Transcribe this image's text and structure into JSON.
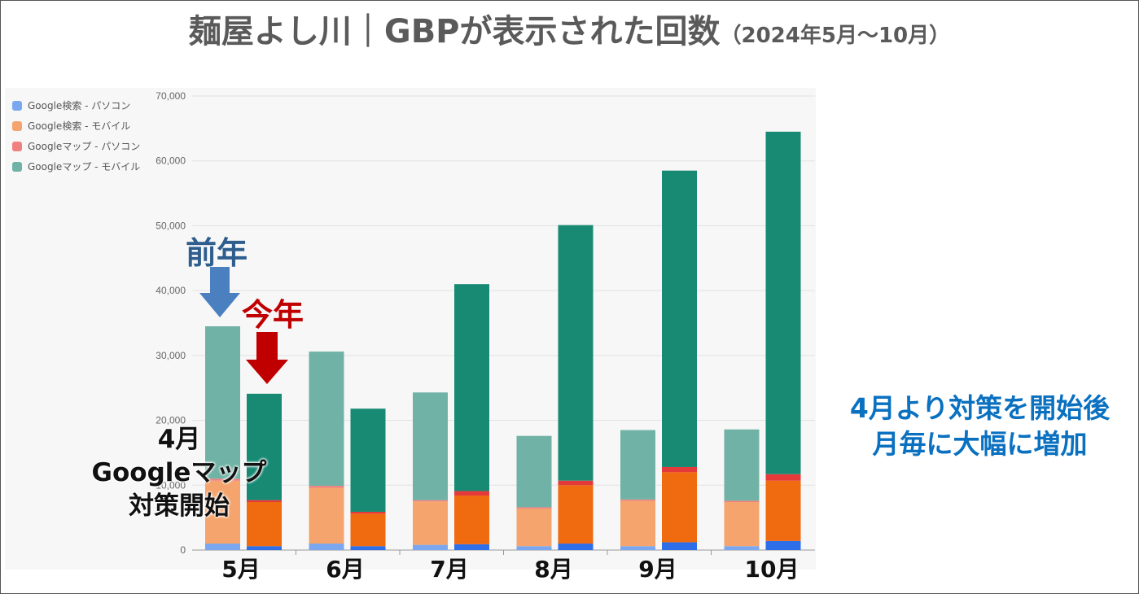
{
  "title": {
    "main": "麺屋よし川｜GBPが表示された回数",
    "sub": "（2024年5月～10月）"
  },
  "annotations": {
    "previous_year": "前年",
    "this_year": "今年",
    "start_note": [
      "4月",
      "Googleマップ",
      "対策開始"
    ],
    "right_note": [
      "4月より対策を開始後",
      "月毎に大幅に増加"
    ]
  },
  "months": [
    "5月",
    "6月",
    "7月",
    "8月",
    "9月",
    "10月"
  ],
  "colors": {
    "prev": [
      "#7ba7f0",
      "#f4a46c",
      "#f08080",
      "#70b3a6"
    ],
    "cur": [
      "#2e6ee8",
      "#f06a10",
      "#e53a3a",
      "#188a74"
    ],
    "arrow_prev": "#4a7fc0",
    "arrow_cur": "#c00000"
  },
  "chart_data": {
    "type": "bar",
    "stacked": true,
    "ylim": [
      0,
      70000
    ],
    "yticks": [
      "0",
      "10,000",
      "20,000",
      "30,000",
      "40,000",
      "50,000",
      "60,000",
      "70,000"
    ],
    "legend_position": "top-left",
    "legend": [
      "Google検索 - パソコン",
      "Google検索 - モバイル",
      "Googleマップ - パソコン",
      "Googleマップ - モバイル"
    ],
    "groups": [
      {
        "month": "5月",
        "previous": [
          1000,
          9700,
          300,
          23500
        ],
        "current": [
          600,
          6800,
          300,
          16400
        ]
      },
      {
        "month": "6月",
        "previous": [
          1000,
          8600,
          300,
          20700
        ],
        "current": [
          600,
          5000,
          300,
          15900
        ]
      },
      {
        "month": "7月",
        "previous": [
          800,
          6700,
          200,
          16600
        ],
        "current": [
          900,
          7500,
          700,
          31900
        ]
      },
      {
        "month": "8月",
        "previous": [
          600,
          5800,
          200,
          11000
        ],
        "current": [
          1000,
          9000,
          700,
          39400
        ]
      },
      {
        "month": "9月",
        "previous": [
          600,
          7000,
          200,
          10700
        ],
        "current": [
          1200,
          10800,
          800,
          45700
        ]
      },
      {
        "month": "10月",
        "previous": [
          600,
          6800,
          200,
          11000
        ],
        "current": [
          1400,
          9300,
          1000,
          52800
        ]
      }
    ]
  }
}
